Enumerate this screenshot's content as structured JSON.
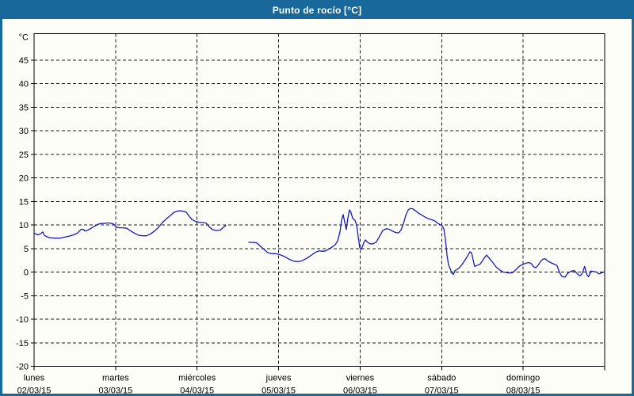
{
  "window": {
    "title": "Punto de rocío [°C]"
  },
  "colors": {
    "titlebar_bg": "#19689c",
    "titlebar_text": "#ffffff",
    "window_border": "#19689c",
    "content_bg": "#fdfdf7",
    "grid": "#1a1a1a",
    "axis": "#000000",
    "line": "#1a1ab8"
  },
  "chart_data": {
    "type": "line",
    "title": "Punto de rocío [°C]",
    "ylabel": "°C",
    "y_unit_label": "°C",
    "ylim": [
      -20,
      50.6
    ],
    "yticks": [
      -20,
      -15,
      -10,
      -5,
      0,
      5,
      10,
      15,
      20,
      25,
      30,
      35,
      40,
      45
    ],
    "x_range_days": [
      0,
      7
    ],
    "grid": true,
    "legend_position": "none",
    "x_categories": [
      {
        "name": "lunes",
        "date": "02/03/15"
      },
      {
        "name": "martes",
        "date": "03/03/15"
      },
      {
        "name": "miércoles",
        "date": "04/03/15"
      },
      {
        "name": "jueves",
        "date": "05/03/15"
      },
      {
        "name": "viernes",
        "date": "06/03/15"
      },
      {
        "name": "sábado",
        "date": "07/03/15"
      },
      {
        "name": "domingo",
        "date": "08/03/15"
      }
    ],
    "series": [
      {
        "name": "Punto de rocío",
        "unit": "°C",
        "color": "#1a1ab8",
        "segments": [
          [
            [
              0.0,
              8.3
            ],
            [
              0.029,
              8.0
            ],
            [
              0.049,
              7.9
            ],
            [
              0.078,
              8.1
            ],
            [
              0.107,
              8.5
            ],
            [
              0.126,
              7.8
            ],
            [
              0.156,
              7.5
            ],
            [
              0.194,
              7.3
            ],
            [
              0.253,
              7.2
            ],
            [
              0.311,
              7.2
            ],
            [
              0.369,
              7.4
            ],
            [
              0.428,
              7.6
            ],
            [
              0.486,
              7.9
            ],
            [
              0.535,
              8.3
            ],
            [
              0.574,
              9.0
            ],
            [
              0.603,
              9.1
            ],
            [
              0.622,
              8.7
            ],
            [
              0.661,
              8.9
            ],
            [
              0.7,
              9.3
            ],
            [
              0.739,
              9.7
            ],
            [
              0.778,
              10.1
            ],
            [
              0.817,
              10.3
            ],
            [
              0.856,
              10.3
            ],
            [
              0.894,
              10.4
            ],
            [
              0.933,
              10.4
            ],
            [
              0.972,
              10.2
            ],
            [
              1.011,
              9.5
            ],
            [
              1.05,
              9.4
            ],
            [
              1.089,
              9.4
            ],
            [
              1.137,
              9.3
            ],
            [
              1.186,
              8.7
            ],
            [
              1.235,
              8.2
            ],
            [
              1.283,
              7.8
            ],
            [
              1.332,
              7.7
            ],
            [
              1.381,
              7.7
            ],
            [
              1.429,
              8.1
            ],
            [
              1.478,
              8.7
            ],
            [
              1.526,
              9.5
            ],
            [
              1.575,
              10.5
            ],
            [
              1.623,
              11.3
            ],
            [
              1.672,
              12.0
            ],
            [
              1.711,
              12.6
            ],
            [
              1.75,
              12.9
            ],
            [
              1.789,
              13.0
            ],
            [
              1.828,
              12.9
            ],
            [
              1.867,
              12.7
            ],
            [
              1.896,
              12.0
            ],
            [
              1.935,
              11.2
            ],
            [
              1.974,
              10.8
            ],
            [
              2.013,
              10.6
            ],
            [
              2.061,
              10.5
            ],
            [
              2.11,
              10.4
            ],
            [
              2.149,
              9.6
            ],
            [
              2.188,
              9.0
            ],
            [
              2.236,
              8.8
            ],
            [
              2.285,
              8.9
            ],
            [
              2.324,
              9.5
            ],
            [
              2.353,
              9.9
            ]
          ],
          [
            [
              2.635,
              6.3
            ],
            [
              2.683,
              6.3
            ],
            [
              2.732,
              6.2
            ],
            [
              2.781,
              5.4
            ],
            [
              2.82,
              4.8
            ],
            [
              2.868,
              4.1
            ],
            [
              2.917,
              3.9
            ],
            [
              2.966,
              3.9
            ],
            [
              3.014,
              3.7
            ],
            [
              3.072,
              3.3
            ],
            [
              3.131,
              2.7
            ],
            [
              3.189,
              2.3
            ],
            [
              3.238,
              2.2
            ],
            [
              3.286,
              2.4
            ],
            [
              3.345,
              2.9
            ],
            [
              3.403,
              3.6
            ],
            [
              3.452,
              4.2
            ],
            [
              3.5,
              4.5
            ],
            [
              3.539,
              4.4
            ],
            [
              3.578,
              4.5
            ],
            [
              3.617,
              4.9
            ],
            [
              3.656,
              5.3
            ],
            [
              3.694,
              5.8
            ],
            [
              3.724,
              6.6
            ],
            [
              3.753,
              8.5
            ],
            [
              3.772,
              11.0
            ],
            [
              3.792,
              12.2
            ],
            [
              3.811,
              10.6
            ],
            [
              3.83,
              9.0
            ],
            [
              3.85,
              11.5
            ],
            [
              3.869,
              13.2
            ],
            [
              3.889,
              12.6
            ],
            [
              3.908,
              11.4
            ],
            [
              3.937,
              11.0
            ],
            [
              3.957,
              10.0
            ],
            [
              3.976,
              7.5
            ],
            [
              3.996,
              5.2
            ],
            [
              4.015,
              4.8
            ],
            [
              4.044,
              6.2
            ],
            [
              4.064,
              6.8
            ],
            [
              4.093,
              6.3
            ],
            [
              4.122,
              6.0
            ],
            [
              4.161,
              6.0
            ],
            [
              4.2,
              6.4
            ],
            [
              4.239,
              7.6
            ],
            [
              4.278,
              8.8
            ],
            [
              4.317,
              9.2
            ],
            [
              4.356,
              9.1
            ],
            [
              4.394,
              8.7
            ],
            [
              4.433,
              8.4
            ],
            [
              4.472,
              8.3
            ],
            [
              4.501,
              8.9
            ],
            [
              4.53,
              10.2
            ],
            [
              4.56,
              12.0
            ],
            [
              4.589,
              13.2
            ],
            [
              4.618,
              13.5
            ],
            [
              4.647,
              13.4
            ],
            [
              4.686,
              12.9
            ],
            [
              4.725,
              12.4
            ],
            [
              4.764,
              12.0
            ],
            [
              4.803,
              11.6
            ],
            [
              4.842,
              11.3
            ],
            [
              4.881,
              11.1
            ],
            [
              4.92,
              10.8
            ],
            [
              4.949,
              10.4
            ],
            [
              4.978,
              10.1
            ],
            [
              5.007,
              9.8
            ],
            [
              5.027,
              9.2
            ],
            [
              5.046,
              7.0
            ],
            [
              5.066,
              3.5
            ],
            [
              5.085,
              1.5
            ],
            [
              5.105,
              0.7
            ],
            [
              5.124,
              -0.2
            ],
            [
              5.144,
              -0.5
            ],
            [
              5.163,
              0.3
            ],
            [
              5.182,
              0.5
            ],
            [
              5.211,
              0.8
            ],
            [
              5.25,
              1.6
            ],
            [
              5.289,
              2.6
            ],
            [
              5.318,
              3.4
            ],
            [
              5.347,
              4.3
            ],
            [
              5.367,
              4.1
            ],
            [
              5.386,
              2.6
            ],
            [
              5.405,
              1.2
            ],
            [
              5.434,
              1.4
            ],
            [
              5.473,
              1.7
            ],
            [
              5.502,
              2.4
            ],
            [
              5.531,
              3.2
            ],
            [
              5.551,
              3.6
            ],
            [
              5.58,
              3.0
            ],
            [
              5.619,
              2.2
            ],
            [
              5.667,
              1.1
            ],
            [
              5.716,
              0.4
            ],
            [
              5.755,
              0.0
            ],
            [
              5.794,
              -0.1
            ],
            [
              5.833,
              -0.2
            ],
            [
              5.872,
              -0.1
            ],
            [
              5.911,
              0.5
            ],
            [
              5.95,
              1.2
            ],
            [
              5.979,
              1.5
            ],
            [
              6.008,
              1.7
            ],
            [
              6.037,
              1.9
            ],
            [
              6.066,
              2.0
            ],
            [
              6.095,
              1.9
            ],
            [
              6.124,
              1.2
            ],
            [
              6.153,
              0.9
            ],
            [
              6.182,
              1.4
            ],
            [
              6.211,
              2.2
            ],
            [
              6.24,
              2.7
            ],
            [
              6.269,
              2.8
            ],
            [
              6.298,
              2.4
            ],
            [
              6.337,
              2.0
            ],
            [
              6.376,
              1.7
            ],
            [
              6.415,
              1.4
            ],
            [
              6.444,
              0.0
            ],
            [
              6.473,
              -0.9
            ],
            [
              6.512,
              -1.1
            ],
            [
              6.551,
              -0.2
            ],
            [
              6.59,
              0.2
            ],
            [
              6.628,
              0.3
            ],
            [
              6.667,
              -0.4
            ],
            [
              6.696,
              -0.8
            ],
            [
              6.725,
              -0.3
            ],
            [
              6.754,
              1.2
            ],
            [
              6.783,
              -0.6
            ],
            [
              6.803,
              -1.0
            ],
            [
              6.832,
              0.2
            ],
            [
              6.871,
              0.1
            ],
            [
              6.9,
              0.0
            ],
            [
              6.929,
              -0.4
            ],
            [
              6.958,
              -0.2
            ],
            [
              6.987,
              0.0
            ]
          ]
        ]
      }
    ]
  }
}
